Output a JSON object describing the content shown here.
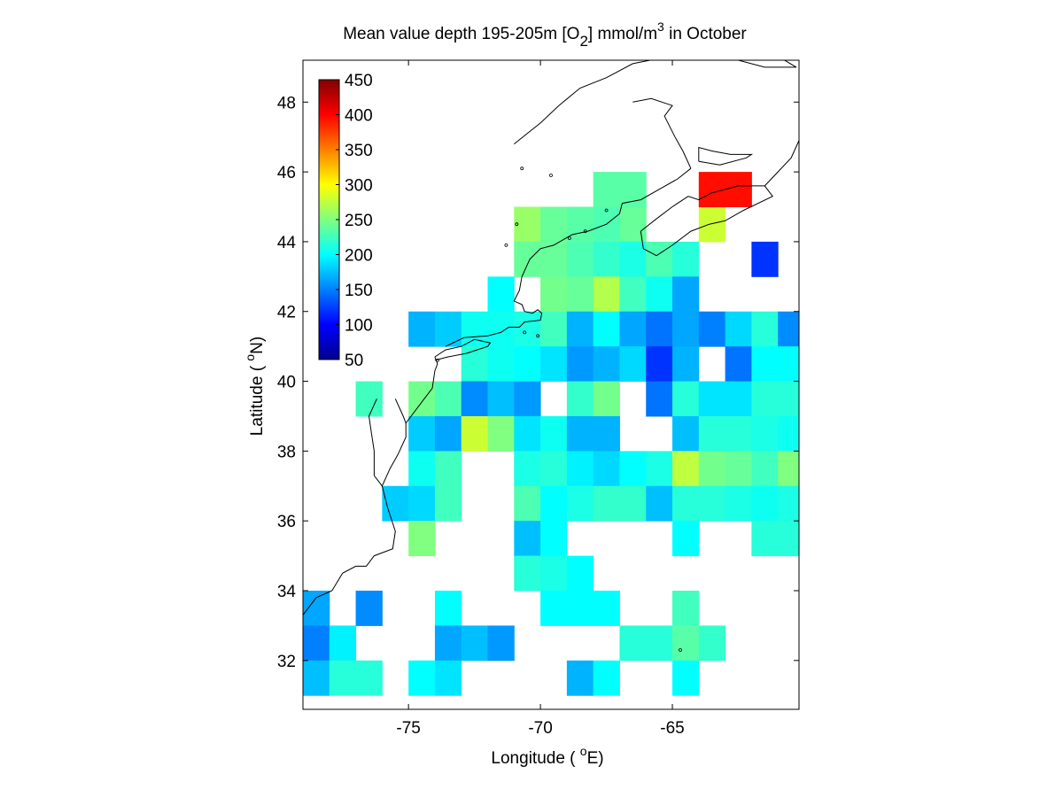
{
  "chart_data": {
    "type": "heatmap",
    "title": {
      "prefix": "Mean value depth 195-205m [O",
      "sub": "2",
      "middle": "] mmol/m",
      "sup": "3",
      "suffix": " in October"
    },
    "xlabel": {
      "prefix": "Longitude ( ",
      "sup": "o",
      "suffix": "E)"
    },
    "ylabel": {
      "prefix": "Latitude ( ",
      "sup": "o",
      "suffix": "N)"
    },
    "xlim": [
      -79,
      -60.2
    ],
    "ylim": [
      30.6,
      49.2
    ],
    "xticks": [
      -75,
      -70,
      -65
    ],
    "yticks": [
      32,
      34,
      36,
      38,
      40,
      42,
      44,
      46,
      48
    ],
    "colorbar": {
      "colormap": "jet",
      "range": [
        50,
        450
      ],
      "ticks": [
        50,
        100,
        150,
        200,
        250,
        300,
        350,
        400,
        450
      ]
    },
    "grid": false,
    "cell_size_deg": 1,
    "cells": [
      {
        "lon": -71,
        "lat": 44,
        "v": 260
      },
      {
        "lon": -70,
        "lat": 44,
        "v": 240
      },
      {
        "lon": -69,
        "lat": 44,
        "v": 235
      },
      {
        "lon": -68,
        "lat": 44,
        "v": 230
      },
      {
        "lon": -67,
        "lat": 44,
        "v": 240
      },
      {
        "lon": -68,
        "lat": 45,
        "v": 235
      },
      {
        "lon": -67,
        "lat": 45,
        "v": 235
      },
      {
        "lon": -64,
        "lat": 44,
        "v": 280
      },
      {
        "lon": -64,
        "lat": 45,
        "v": 395
      },
      {
        "lon": -63,
        "lat": 45,
        "v": 395
      },
      {
        "lon": -71,
        "lat": 43,
        "v": 240
      },
      {
        "lon": -70,
        "lat": 43,
        "v": 240
      },
      {
        "lon": -69,
        "lat": 43,
        "v": 230
      },
      {
        "lon": -68,
        "lat": 43,
        "v": 220
      },
      {
        "lon": -67,
        "lat": 43,
        "v": 210
      },
      {
        "lon": -66,
        "lat": 43,
        "v": 230
      },
      {
        "lon": -65,
        "lat": 43,
        "v": 215
      },
      {
        "lon": -62,
        "lat": 43,
        "v": 120
      },
      {
        "lon": -72,
        "lat": 42,
        "v": 200
      },
      {
        "lon": -70,
        "lat": 42,
        "v": 245
      },
      {
        "lon": -69,
        "lat": 42,
        "v": 240
      },
      {
        "lon": -68,
        "lat": 42,
        "v": 270
      },
      {
        "lon": -67,
        "lat": 42,
        "v": 225
      },
      {
        "lon": -66,
        "lat": 42,
        "v": 205
      },
      {
        "lon": -65,
        "lat": 42,
        "v": 165
      },
      {
        "lon": -75,
        "lat": 41,
        "v": 170
      },
      {
        "lon": -74,
        "lat": 41,
        "v": 180
      },
      {
        "lon": -73,
        "lat": 41,
        "v": 205
      },
      {
        "lon": -72,
        "lat": 41,
        "v": 205
      },
      {
        "lon": -71,
        "lat": 41,
        "v": 210
      },
      {
        "lon": -70,
        "lat": 41,
        "v": 225
      },
      {
        "lon": -69,
        "lat": 41,
        "v": 170
      },
      {
        "lon": -68,
        "lat": 41,
        "v": 200
      },
      {
        "lon": -67,
        "lat": 41,
        "v": 165
      },
      {
        "lon": -66,
        "lat": 41,
        "v": 145
      },
      {
        "lon": -65,
        "lat": 41,
        "v": 165
      },
      {
        "lon": -64,
        "lat": 41,
        "v": 150
      },
      {
        "lon": -63,
        "lat": 41,
        "v": 185
      },
      {
        "lon": -62,
        "lat": 41,
        "v": 215
      },
      {
        "lon": -61,
        "lat": 41,
        "v": 155
      },
      {
        "lon": -73,
        "lat": 40,
        "v": 215
      },
      {
        "lon": -72,
        "lat": 40,
        "v": 205
      },
      {
        "lon": -71,
        "lat": 40,
        "v": 200
      },
      {
        "lon": -70,
        "lat": 40,
        "v": 190
      },
      {
        "lon": -69,
        "lat": 40,
        "v": 160
      },
      {
        "lon": -68,
        "lat": 40,
        "v": 170
      },
      {
        "lon": -67,
        "lat": 40,
        "v": 185
      },
      {
        "lon": -66,
        "lat": 40,
        "v": 120
      },
      {
        "lon": -65,
        "lat": 40,
        "v": 170
      },
      {
        "lon": -63,
        "lat": 40,
        "v": 145
      },
      {
        "lon": -62,
        "lat": 40,
        "v": 200
      },
      {
        "lon": -61,
        "lat": 40,
        "v": 200
      },
      {
        "lon": -77,
        "lat": 39,
        "v": 225
      },
      {
        "lon": -75,
        "lat": 39,
        "v": 245
      },
      {
        "lon": -74,
        "lat": 39,
        "v": 230
      },
      {
        "lon": -73,
        "lat": 39,
        "v": 155
      },
      {
        "lon": -72,
        "lat": 39,
        "v": 175
      },
      {
        "lon": -71,
        "lat": 39,
        "v": 160
      },
      {
        "lon": -69,
        "lat": 39,
        "v": 220
      },
      {
        "lon": -68,
        "lat": 39,
        "v": 245
      },
      {
        "lon": -66,
        "lat": 39,
        "v": 145
      },
      {
        "lon": -65,
        "lat": 39,
        "v": 215
      },
      {
        "lon": -64,
        "lat": 39,
        "v": 190
      },
      {
        "lon": -63,
        "lat": 39,
        "v": 190
      },
      {
        "lon": -62,
        "lat": 39,
        "v": 215
      },
      {
        "lon": -61,
        "lat": 39,
        "v": 215
      },
      {
        "lon": -75,
        "lat": 38,
        "v": 180
      },
      {
        "lon": -74,
        "lat": 38,
        "v": 165
      },
      {
        "lon": -73,
        "lat": 38,
        "v": 280
      },
      {
        "lon": -72,
        "lat": 38,
        "v": 250
      },
      {
        "lon": -71,
        "lat": 38,
        "v": 190
      },
      {
        "lon": -70,
        "lat": 38,
        "v": 205
      },
      {
        "lon": -69,
        "lat": 38,
        "v": 170
      },
      {
        "lon": -68,
        "lat": 38,
        "v": 170
      },
      {
        "lon": -65,
        "lat": 38,
        "v": 175
      },
      {
        "lon": -64,
        "lat": 38,
        "v": 215
      },
      {
        "lon": -63,
        "lat": 38,
        "v": 215
      },
      {
        "lon": -62,
        "lat": 38,
        "v": 210
      },
      {
        "lon": -61,
        "lat": 38,
        "v": 205
      },
      {
        "lon": -75,
        "lat": 37,
        "v": 205
      },
      {
        "lon": -74,
        "lat": 37,
        "v": 225
      },
      {
        "lon": -71,
        "lat": 37,
        "v": 210
      },
      {
        "lon": -70,
        "lat": 37,
        "v": 215
      },
      {
        "lon": -69,
        "lat": 37,
        "v": 195
      },
      {
        "lon": -68,
        "lat": 37,
        "v": 185
      },
      {
        "lon": -67,
        "lat": 37,
        "v": 200
      },
      {
        "lon": -66,
        "lat": 37,
        "v": 210
      },
      {
        "lon": -65,
        "lat": 37,
        "v": 275
      },
      {
        "lon": -64,
        "lat": 37,
        "v": 245
      },
      {
        "lon": -63,
        "lat": 37,
        "v": 240
      },
      {
        "lon": -62,
        "lat": 37,
        "v": 225
      },
      {
        "lon": -61,
        "lat": 37,
        "v": 250
      },
      {
        "lon": -76,
        "lat": 36,
        "v": 180
      },
      {
        "lon": -75,
        "lat": 36,
        "v": 185
      },
      {
        "lon": -74,
        "lat": 36,
        "v": 225
      },
      {
        "lon": -71,
        "lat": 36,
        "v": 230
      },
      {
        "lon": -70,
        "lat": 36,
        "v": 200
      },
      {
        "lon": -69,
        "lat": 36,
        "v": 210
      },
      {
        "lon": -68,
        "lat": 36,
        "v": 220
      },
      {
        "lon": -67,
        "lat": 36,
        "v": 220
      },
      {
        "lon": -66,
        "lat": 36,
        "v": 175
      },
      {
        "lon": -65,
        "lat": 36,
        "v": 215
      },
      {
        "lon": -64,
        "lat": 36,
        "v": 215
      },
      {
        "lon": -63,
        "lat": 36,
        "v": 210
      },
      {
        "lon": -62,
        "lat": 36,
        "v": 205
      },
      {
        "lon": -61,
        "lat": 36,
        "v": 210
      },
      {
        "lon": -75,
        "lat": 35,
        "v": 250
      },
      {
        "lon": -71,
        "lat": 35,
        "v": 175
      },
      {
        "lon": -70,
        "lat": 35,
        "v": 200
      },
      {
        "lon": -65,
        "lat": 35,
        "v": 200
      },
      {
        "lon": -62,
        "lat": 35,
        "v": 215
      },
      {
        "lon": -61,
        "lat": 35,
        "v": 215
      },
      {
        "lon": -71,
        "lat": 34,
        "v": 215
      },
      {
        "lon": -70,
        "lat": 34,
        "v": 210
      },
      {
        "lon": -69,
        "lat": 34,
        "v": 200
      },
      {
        "lon": -79,
        "lat": 33,
        "v": 165
      },
      {
        "lon": -77,
        "lat": 33,
        "v": 155
      },
      {
        "lon": -74,
        "lat": 33,
        "v": 200
      },
      {
        "lon": -70,
        "lat": 33,
        "v": 200
      },
      {
        "lon": -69,
        "lat": 33,
        "v": 200
      },
      {
        "lon": -68,
        "lat": 33,
        "v": 200
      },
      {
        "lon": -65,
        "lat": 33,
        "v": 225
      },
      {
        "lon": -79,
        "lat": 32,
        "v": 150
      },
      {
        "lon": -78,
        "lat": 32,
        "v": 195
      },
      {
        "lon": -74,
        "lat": 32,
        "v": 165
      },
      {
        "lon": -73,
        "lat": 32,
        "v": 175
      },
      {
        "lon": -72,
        "lat": 32,
        "v": 160
      },
      {
        "lon": -67,
        "lat": 32,
        "v": 215
      },
      {
        "lon": -66,
        "lat": 32,
        "v": 215
      },
      {
        "lon": -65,
        "lat": 32,
        "v": 235
      },
      {
        "lon": -64,
        "lat": 32,
        "v": 220
      },
      {
        "lon": -79,
        "lat": 31,
        "v": 175
      },
      {
        "lon": -78,
        "lat": 31,
        "v": 215
      },
      {
        "lon": -77,
        "lat": 31,
        "v": 215
      },
      {
        "lon": -75,
        "lat": 31,
        "v": 200
      },
      {
        "lon": -74,
        "lat": 31,
        "v": 190
      },
      {
        "lon": -69,
        "lat": 31,
        "v": 170
      },
      {
        "lon": -68,
        "lat": 31,
        "v": 200
      },
      {
        "lon": -65,
        "lat": 31,
        "v": 200
      }
    ],
    "coastlines": [
      [
        [
          -79.0,
          33.3
        ],
        [
          -78.5,
          33.8
        ],
        [
          -77.9,
          34.0
        ],
        [
          -77.5,
          34.5
        ],
        [
          -77.0,
          34.7
        ],
        [
          -76.6,
          34.7
        ],
        [
          -76.3,
          35.0
        ],
        [
          -75.6,
          35.2
        ],
        [
          -75.5,
          35.7
        ],
        [
          -75.8,
          36.4
        ],
        [
          -76.0,
          37.0
        ],
        [
          -75.7,
          37.5
        ],
        [
          -75.4,
          37.9
        ],
        [
          -75.1,
          38.4
        ],
        [
          -75.1,
          38.8
        ],
        [
          -74.9,
          39.0
        ],
        [
          -74.5,
          39.4
        ],
        [
          -74.1,
          39.8
        ],
        [
          -74.0,
          40.3
        ],
        [
          -73.9,
          40.5
        ],
        [
          -74.0,
          40.7
        ]
      ],
      [
        [
          -74.0,
          40.6
        ],
        [
          -73.5,
          40.7
        ],
        [
          -72.8,
          40.8
        ],
        [
          -72.0,
          41.0
        ],
        [
          -71.9,
          41.1
        ],
        [
          -72.5,
          41.2
        ],
        [
          -73.0,
          41.0
        ],
        [
          -73.6,
          40.9
        ],
        [
          -74.0,
          40.7
        ]
      ],
      [
        [
          -73.6,
          41.0
        ],
        [
          -72.9,
          41.25
        ],
        [
          -72.0,
          41.3
        ],
        [
          -71.5,
          41.4
        ],
        [
          -71.2,
          41.55
        ],
        [
          -70.8,
          41.55
        ],
        [
          -70.6,
          41.7
        ],
        [
          -70.0,
          41.75
        ],
        [
          -69.95,
          41.95
        ],
        [
          -70.1,
          42.05
        ],
        [
          -70.3,
          41.95
        ],
        [
          -70.6,
          42.0
        ],
        [
          -70.7,
          42.2
        ],
        [
          -71.0,
          42.3
        ],
        [
          -70.8,
          42.6
        ],
        [
          -70.7,
          43.0
        ],
        [
          -70.4,
          43.5
        ],
        [
          -70.0,
          43.8
        ],
        [
          -69.5,
          43.9
        ],
        [
          -68.8,
          44.2
        ],
        [
          -68.2,
          44.3
        ],
        [
          -67.5,
          44.5
        ],
        [
          -67.0,
          44.8
        ],
        [
          -66.9,
          45.1
        ],
        [
          -66.2,
          45.2
        ],
        [
          -65.5,
          45.5
        ],
        [
          -64.8,
          45.8
        ],
        [
          -64.3,
          46.1
        ]
      ],
      [
        [
          -66.2,
          44.3
        ],
        [
          -65.7,
          44.6
        ],
        [
          -65.0,
          45.0
        ],
        [
          -64.4,
          45.3
        ],
        [
          -64.0,
          45.2
        ],
        [
          -63.5,
          45.4
        ],
        [
          -62.5,
          45.6
        ],
        [
          -61.5,
          45.6
        ],
        [
          -61.2,
          45.3
        ],
        [
          -62.3,
          44.9
        ],
        [
          -63.0,
          44.6
        ],
        [
          -63.6,
          44.5
        ],
        [
          -64.3,
          44.3
        ],
        [
          -65.0,
          43.9
        ],
        [
          -65.6,
          43.6
        ],
        [
          -66.1,
          43.8
        ],
        [
          -66.2,
          44.3
        ]
      ],
      [
        [
          -61.5,
          45.6
        ],
        [
          -61.0,
          46.0
        ],
        [
          -60.5,
          46.4
        ],
        [
          -60.2,
          46.9
        ]
      ],
      [
        [
          -64.3,
          46.1
        ],
        [
          -64.6,
          46.6
        ],
        [
          -64.9,
          47.0
        ],
        [
          -65.3,
          47.6
        ],
        [
          -65.0,
          47.9
        ],
        [
          -65.8,
          48.1
        ],
        [
          -66.5,
          48.0
        ]
      ],
      [
        [
          -64.0,
          46.3
        ],
        [
          -63.2,
          46.2
        ],
        [
          -62.2,
          46.4
        ],
        [
          -62.0,
          46.5
        ],
        [
          -62.8,
          46.5
        ],
        [
          -63.5,
          46.6
        ],
        [
          -64.0,
          46.7
        ],
        [
          -64.0,
          46.3
        ]
      ],
      [
        [
          -60.3,
          49.0
        ],
        [
          -61.2,
          49.4
        ],
        [
          -62.2,
          49.4
        ],
        [
          -62.5,
          49.2
        ],
        [
          -61.5,
          49.0
        ],
        [
          -60.3,
          49.0
        ]
      ],
      [
        [
          -71.0,
          46.8
        ],
        [
          -70.0,
          47.4
        ],
        [
          -69.3,
          47.9
        ],
        [
          -68.5,
          48.4
        ],
        [
          -67.5,
          48.7
        ],
        [
          -66.5,
          49.1
        ],
        [
          -65.5,
          49.25
        ]
      ],
      [
        [
          -64.8,
          49.2
        ],
        [
          -66.0,
          49.2
        ],
        [
          -67.2,
          49.25
        ]
      ],
      [
        [
          -76.2,
          39.5
        ],
        [
          -76.5,
          39.0
        ],
        [
          -76.4,
          38.5
        ],
        [
          -76.3,
          38.0
        ],
        [
          -76.3,
          37.3
        ],
        [
          -76.0,
          37.0
        ]
      ],
      [
        [
          -75.5,
          39.5
        ],
        [
          -75.2,
          39.0
        ],
        [
          -75.1,
          38.8
        ]
      ]
    ],
    "islands": [
      [
        -70.6,
        41.4
      ],
      [
        -70.1,
        41.3
      ],
      [
        -73.9,
        40.6
      ],
      [
        -68.3,
        44.3
      ],
      [
        -68.9,
        44.1
      ],
      [
        -64.7,
        32.3
      ],
      [
        -71.3,
        43.9
      ],
      [
        -70.9,
        44.5
      ],
      [
        -67.5,
        44.9
      ],
      [
        -69.6,
        45.9
      ],
      [
        -70.7,
        46.1
      ]
    ]
  }
}
